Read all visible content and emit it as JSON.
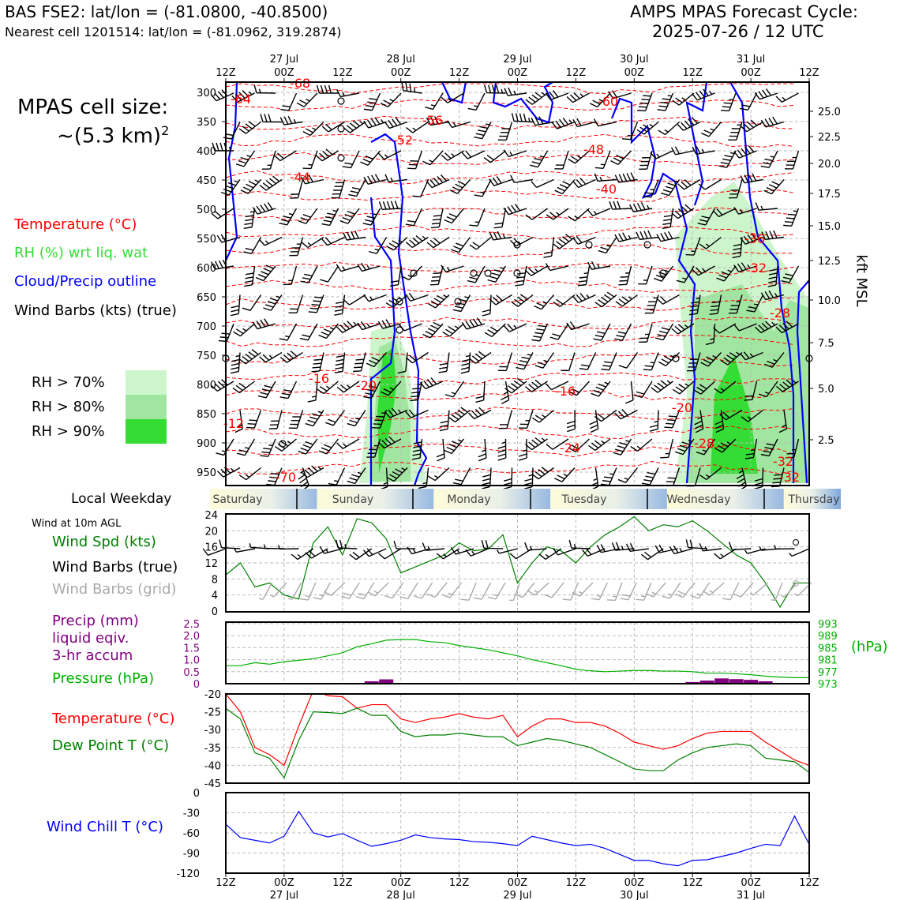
{
  "header": {
    "station": "BAS FSE2: lat/lon = (-81.0800, -40.8500)",
    "nearest": "Nearest cell 1201514: lat/lon = (-81.0962, 319.2874)",
    "cycle_title": "AMPS MPAS Forecast Cycle:",
    "cycle_date": "2025-07-26 / 12 UTC"
  },
  "side": {
    "cell_size_line1": "MPAS cell size:",
    "cell_size_line2": "~(5.3 km)",
    "cell_size_sup": "2",
    "legend_temperature": "Temperature (°C)",
    "legend_rh": "RH (%) wrt liq. wat",
    "legend_cloud": "Cloud/Precip outline",
    "legend_wind": "Wind Barbs (kts) (true)",
    "rh70": "RH > 70%",
    "rh80": "RH > 80%",
    "rh90": "RH > 90%",
    "weekday_label": "Local Weekday",
    "wind10m": "Wind at 10m AGL",
    "wind_spd": "Wind Spd (kts)",
    "wind_barbs_true": "Wind Barbs (true)",
    "wind_barbs_grid": "Wind Barbs (grid)",
    "precip_l1": "Precip (mm)",
    "precip_l2": "liquid eqiv.",
    "precip_l3": "3-hr accum",
    "pressure": "Pressure (hPa)",
    "hpa_unit": "(hPa)",
    "temperature": "Temperature (°C)",
    "dewpoint": "Dew Point T (°C)",
    "windchill": "Wind Chill T (°C)",
    "kft": "kft MSL"
  },
  "colors": {
    "temp": "#ff0000",
    "dew": "#008000",
    "rh": "#22cc22",
    "cloud": "#0000ff",
    "precip": "#800080",
    "pressure": "#00b000",
    "windspd": "#008000",
    "grid_barb": "#aaaaaa",
    "rh70": "#ccf5cc",
    "rh80": "#a0e6a0",
    "rh90": "#33dd33"
  },
  "chart_data": [
    {
      "type": "heatmap",
      "name": "cross-section",
      "x_ticks_top": [
        "12Z",
        "00Z",
        "12Z",
        "00Z",
        "12Z",
        "00Z",
        "12Z",
        "00Z",
        "12Z",
        "00Z",
        "12Z"
      ],
      "x_dates_top": [
        "27 Jul",
        "28 Jul",
        "29 Jul",
        "30 Jul",
        "31 Jul"
      ],
      "y_pressure_ticks": [
        "300",
        "350",
        "400",
        "450",
        "500",
        "550",
        "600",
        "650",
        "700",
        "750",
        "800",
        "850",
        "900",
        "950"
      ],
      "y_kft_ticks": [
        "25.0",
        "22.5",
        "20.0",
        "17.5",
        "15.0",
        "12.5",
        "10.0",
        "7.5",
        "5.0",
        "2.5"
      ],
      "temp_contour_labels": [
        "-68",
        "-64",
        "-60",
        "-56",
        "-52",
        "-48",
        "-44",
        "-40",
        "-36",
        "-32",
        "-28",
        "-24",
        "-20",
        "-16",
        "-16",
        "-12",
        "-20",
        "-28",
        "-32",
        "-32",
        "-70"
      ]
    },
    {
      "type": "line",
      "name": "weekday-strip",
      "labels": [
        "Saturday",
        "Sunday",
        "Monday",
        "Tuesday",
        "Wednesday",
        "Thursday"
      ]
    },
    {
      "type": "line",
      "name": "wind-speed",
      "ylim": [
        0,
        24
      ],
      "y_ticks": [
        "0",
        "4",
        "8",
        "12",
        "16",
        "20",
        "24"
      ],
      "x": [
        0,
        3,
        6,
        9,
        12,
        15,
        18,
        21,
        24,
        27,
        30,
        33,
        36,
        39,
        42,
        45,
        48,
        51,
        54,
        57,
        60,
        63,
        66,
        69,
        72,
        75,
        78,
        81,
        84,
        87,
        90,
        93,
        96,
        99,
        102,
        105,
        108,
        111,
        114,
        117,
        120
      ],
      "values": [
        9,
        12,
        6,
        7,
        4,
        3,
        17,
        21,
        14,
        23,
        22,
        18,
        9.5,
        11,
        12.5,
        14,
        17,
        15,
        15.5,
        19,
        7,
        12,
        16,
        15,
        12,
        16,
        19,
        21,
        23.5,
        20,
        21.5,
        21,
        22.5,
        20,
        17,
        14,
        12,
        7,
        1,
        7,
        7
      ]
    },
    {
      "type": "bar",
      "name": "precip-pressure",
      "precip_ylim": [
        0,
        2.5
      ],
      "precip_ticks": [
        "0",
        "0.5",
        "1.0",
        "1.5",
        "2.0",
        "2.5"
      ],
      "pressure_ticks": [
        "973",
        "977",
        "981",
        "985",
        "989",
        "993"
      ],
      "pressure_ylim": [
        973,
        993
      ],
      "pressure_x": [
        0,
        3,
        6,
        9,
        12,
        15,
        18,
        21,
        24,
        27,
        30,
        33,
        36,
        39,
        42,
        45,
        48,
        51,
        54,
        57,
        60,
        63,
        66,
        69,
        72,
        75,
        78,
        81,
        84,
        87,
        90,
        93,
        96,
        99,
        102,
        105,
        108,
        111,
        114,
        117,
        120
      ],
      "pressure_values": [
        979,
        979,
        980,
        979.5,
        980.3,
        980.8,
        981.3,
        982.3,
        983.3,
        985.3,
        986.3,
        987.5,
        987.7,
        987.7,
        987,
        986.7,
        985.7,
        985,
        984.3,
        983.3,
        982.3,
        981,
        980,
        979,
        977.8,
        977.3,
        977,
        977.2,
        977.4,
        977.4,
        977.2,
        977.2,
        977,
        976.5,
        976.5,
        976.3,
        976,
        975.5,
        975.2,
        975,
        975
      ],
      "precip_x": [
        30,
        33,
        96,
        99,
        102,
        105,
        108,
        111
      ],
      "precip_values": [
        0.1,
        0.18,
        0.07,
        0.13,
        0.22,
        0.19,
        0.16,
        0.1
      ]
    },
    {
      "type": "line",
      "name": "temperature-dewpoint",
      "ylim": [
        -45,
        -20
      ],
      "y_ticks": [
        "-20",
        "-25",
        "-30",
        "-35",
        "-40",
        "-45"
      ],
      "x": [
        0,
        3,
        6,
        9,
        12,
        15,
        18,
        21,
        24,
        27,
        30,
        33,
        36,
        39,
        42,
        45,
        48,
        51,
        54,
        57,
        60,
        63,
        66,
        69,
        72,
        75,
        78,
        81,
        84,
        87,
        90,
        93,
        96,
        99,
        102,
        105,
        108,
        111,
        114,
        117,
        120
      ],
      "series": [
        {
          "name": "Temperature",
          "values": [
            -20,
            -25,
            -35,
            -37,
            -40,
            -29,
            -19,
            -20.5,
            -20.8,
            -24,
            -23,
            -23,
            -27,
            -28,
            -27,
            -26.5,
            -25.5,
            -26.5,
            -27,
            -26,
            -32,
            -29,
            -27,
            -27,
            -28,
            -28,
            -29,
            -31,
            -33.5,
            -34.5,
            -35.5,
            -34.5,
            -32.5,
            -31,
            -30.5,
            -30.5,
            -30.5,
            -33.5,
            -36,
            -38.5,
            -40
          ]
        },
        {
          "name": "Dew Point",
          "values": [
            -24,
            -27,
            -36.5,
            -38,
            -43.5,
            -33,
            -25,
            -25.2,
            -25.5,
            -24,
            -26,
            -26,
            -30.5,
            -32,
            -31.5,
            -31.5,
            -31,
            -31.5,
            -32,
            -32,
            -34.5,
            -33.5,
            -32.5,
            -33,
            -34,
            -35,
            -37,
            -39,
            -41,
            -41.5,
            -41.5,
            -38.5,
            -36.5,
            -35,
            -34.5,
            -34,
            -34.5,
            -38,
            -38.5,
            -39,
            -42
          ]
        }
      ]
    },
    {
      "type": "line",
      "name": "wind-chill",
      "ylim": [
        -120,
        0
      ],
      "y_ticks": [
        "0",
        "-30",
        "-60",
        "-90",
        "-120"
      ],
      "x": [
        0,
        3,
        6,
        9,
        12,
        15,
        18,
        21,
        24,
        27,
        30,
        33,
        36,
        39,
        42,
        45,
        48,
        51,
        54,
        57,
        60,
        63,
        66,
        69,
        72,
        75,
        78,
        81,
        84,
        87,
        90,
        93,
        96,
        99,
        102,
        105,
        108,
        111,
        114,
        117,
        120
      ],
      "values": [
        -47,
        -67,
        -71,
        -75,
        -65,
        -28,
        -60,
        -66,
        -61,
        -71,
        -80,
        -76,
        -71,
        -63,
        -67,
        -69,
        -70,
        -73,
        -74,
        -76,
        -79,
        -65,
        -70,
        -75,
        -79,
        -77,
        -83,
        -92,
        -101,
        -101,
        -106,
        -109,
        -101,
        -100,
        -95,
        -90,
        -83,
        -77,
        -79,
        -35,
        -77
      ],
      "x_ticks": [
        "12Z",
        "00Z",
        "12Z",
        "00Z",
        "12Z",
        "00Z",
        "12Z",
        "00Z",
        "12Z",
        "00Z",
        "12Z"
      ],
      "x_dates": [
        "27 Jul",
        "28 Jul",
        "29 Jul",
        "30 Jul",
        "31 Jul"
      ]
    }
  ]
}
